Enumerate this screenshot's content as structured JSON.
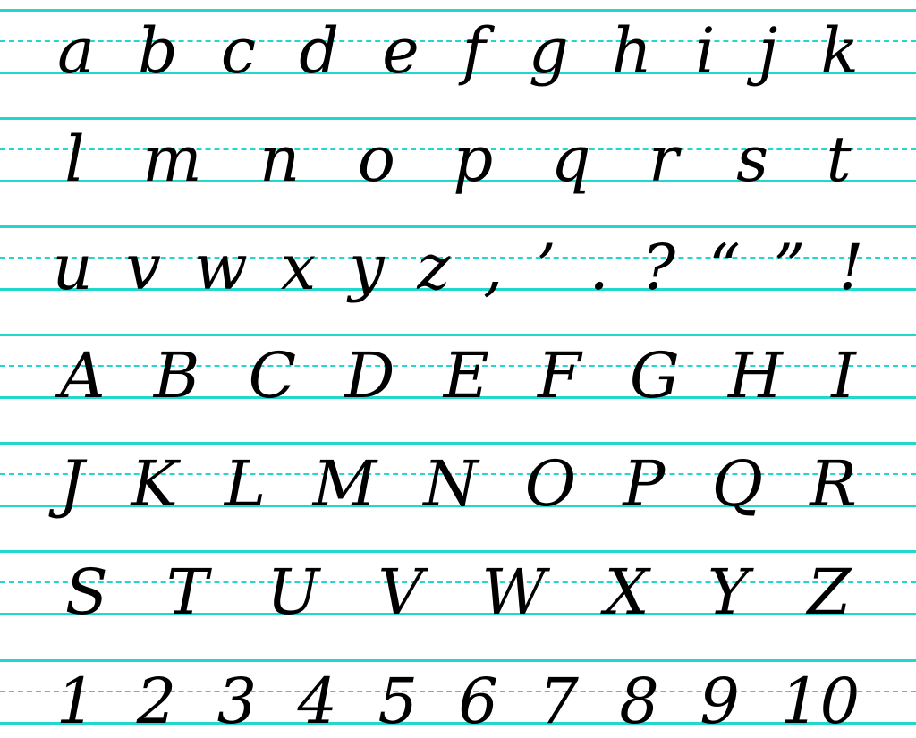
{
  "colors": {
    "guide_line": "#22d8cc",
    "ink": "#000000",
    "stroke_arrow": "#888888",
    "start_stroke": "#2a9a2a"
  },
  "rows": [
    {
      "chars": [
        "a",
        "b",
        "c",
        "d",
        "e",
        "f",
        "g",
        "h",
        "i",
        "j",
        "k"
      ]
    },
    {
      "chars": [
        "l",
        "m",
        "n",
        "o",
        "p",
        "q",
        "r",
        "s",
        "t"
      ]
    },
    {
      "chars": [
        "u",
        "v",
        "w",
        "x",
        "y",
        "z",
        ",",
        "’",
        ".",
        "?",
        "“",
        "”",
        "!"
      ]
    },
    {
      "chars": [
        "A",
        "B",
        "C",
        "D",
        "E",
        "F",
        "G",
        "H",
        "I"
      ]
    },
    {
      "chars": [
        "J",
        "K",
        "L",
        "M",
        "N",
        "O",
        "P",
        "Q",
        "R"
      ]
    },
    {
      "chars": [
        "S",
        "T",
        "U",
        "V",
        "W",
        "X",
        "Y",
        "Z"
      ]
    },
    {
      "chars": [
        "1",
        "2",
        "3",
        "4",
        "5",
        "6",
        "7",
        "8",
        "9",
        "10"
      ]
    }
  ]
}
